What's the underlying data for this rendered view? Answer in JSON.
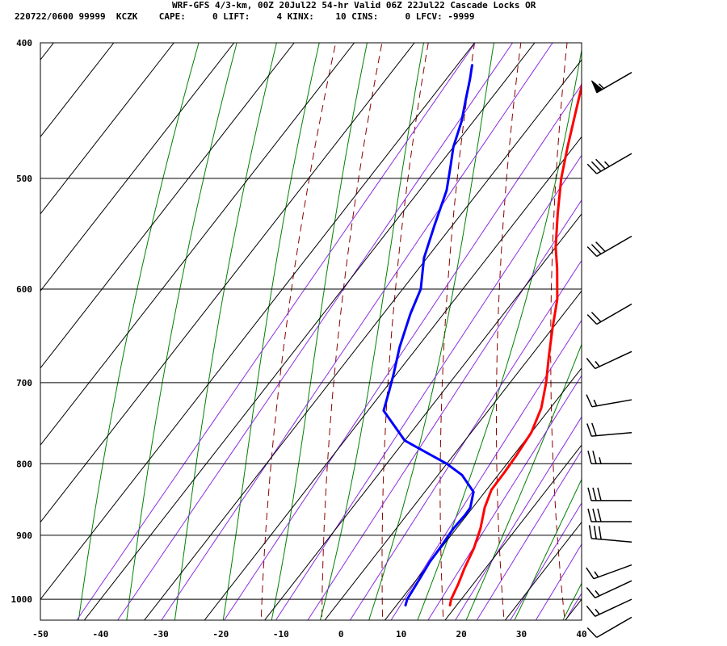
{
  "header": {
    "line1": "WRF-GFS 4/3-km, 00Z 20Jul22 54-hr Valid 06Z 22Jul22 Cascade Locks OR",
    "line2": "220722/0600 99999  KCZK    CAPE:     0 LIFT:     4 KINX:    10 CINS:     0 LFCV: -9999"
  },
  "chart_data": {
    "type": "line",
    "subtype": "skew-T log-p sounding",
    "title": "WRF-GFS 4/3-km, 00Z 20Jul22 54-hr Valid 06Z 22Jul22 Cascade Locks OR",
    "xlabel": "",
    "ylabel": "",
    "x_ticks": [
      -50,
      -40,
      -30,
      -20,
      -10,
      0,
      10,
      20,
      30,
      40
    ],
    "y_ticks": [
      400,
      500,
      600,
      700,
      800,
      900,
      1000
    ],
    "xlim": [
      -50,
      40
    ],
    "ylim": [
      1035,
      400
    ],
    "y_scale": "log",
    "grid": true,
    "colors": {
      "temperature": "#ff0000",
      "dewpoint": "#0000ff",
      "dry_adiabat": "#8b0000",
      "moist_adiabat": "#008000",
      "mixing_ratio": "#8a2be2",
      "grid": "#000000"
    },
    "series": [
      {
        "key": "temperature",
        "points": [
          [
            18.9,
            1010
          ],
          [
            18.3,
            1000
          ],
          [
            17.5,
            975
          ],
          [
            16.5,
            950
          ],
          [
            15.5,
            920
          ],
          [
            14,
            890
          ],
          [
            12,
            860
          ],
          [
            10.8,
            835
          ],
          [
            10.7,
            810
          ],
          [
            10.5,
            790
          ],
          [
            10,
            760
          ],
          [
            8.5,
            730
          ],
          [
            6,
            700
          ],
          [
            3,
            670
          ],
          [
            0,
            640
          ],
          [
            -3,
            610
          ],
          [
            -7,
            580
          ],
          [
            -10,
            560
          ],
          [
            -14,
            530
          ],
          [
            -18,
            500
          ],
          [
            -21,
            475
          ],
          [
            -24,
            450
          ],
          [
            -26.5,
            430
          ],
          [
            -28.5,
            415
          ]
        ]
      },
      {
        "key": "dewpoint",
        "points": [
          [
            11.5,
            1010
          ],
          [
            11,
            1000
          ],
          [
            10.3,
            960
          ],
          [
            9.9,
            940
          ],
          [
            9.8,
            920
          ],
          [
            9.5,
            890
          ],
          [
            9.7,
            870
          ],
          [
            9.6,
            860
          ],
          [
            8.1,
            838
          ],
          [
            4,
            815
          ],
          [
            0,
            800
          ],
          [
            -10,
            770
          ],
          [
            -17.4,
            733
          ],
          [
            -19,
            710
          ],
          [
            -20.5,
            690
          ],
          [
            -23,
            660
          ],
          [
            -25.5,
            625
          ],
          [
            -27,
            600
          ],
          [
            -30.5,
            570
          ],
          [
            -33,
            540
          ],
          [
            -35.5,
            510
          ],
          [
            -38,
            490
          ],
          [
            -40,
            475
          ],
          [
            -42,
            455
          ],
          [
            -44,
            440
          ],
          [
            -46,
            425
          ],
          [
            -47.5,
            415
          ]
        ]
      }
    ],
    "wind_barbs": [
      {
        "p": 420,
        "dir": 240,
        "speed": 55
      },
      {
        "p": 480,
        "dir": 240,
        "speed": 35
      },
      {
        "p": 550,
        "dir": 240,
        "speed": 30
      },
      {
        "p": 615,
        "dir": 240,
        "speed": 20
      },
      {
        "p": 665,
        "dir": 245,
        "speed": 15
      },
      {
        "p": 720,
        "dir": 260,
        "speed": 15
      },
      {
        "p": 760,
        "dir": 265,
        "speed": 20
      },
      {
        "p": 800,
        "dir": 270,
        "speed": 25
      },
      {
        "p": 850,
        "dir": 270,
        "speed": 30
      },
      {
        "p": 880,
        "dir": 270,
        "speed": 30
      },
      {
        "p": 910,
        "dir": 275,
        "speed": 30
      },
      {
        "p": 945,
        "dir": 250,
        "speed": 15
      },
      {
        "p": 970,
        "dir": 245,
        "speed": 15
      },
      {
        "p": 1000,
        "dir": 245,
        "speed": 15
      },
      {
        "p": 1030,
        "dir": 240,
        "speed": 10
      }
    ]
  }
}
